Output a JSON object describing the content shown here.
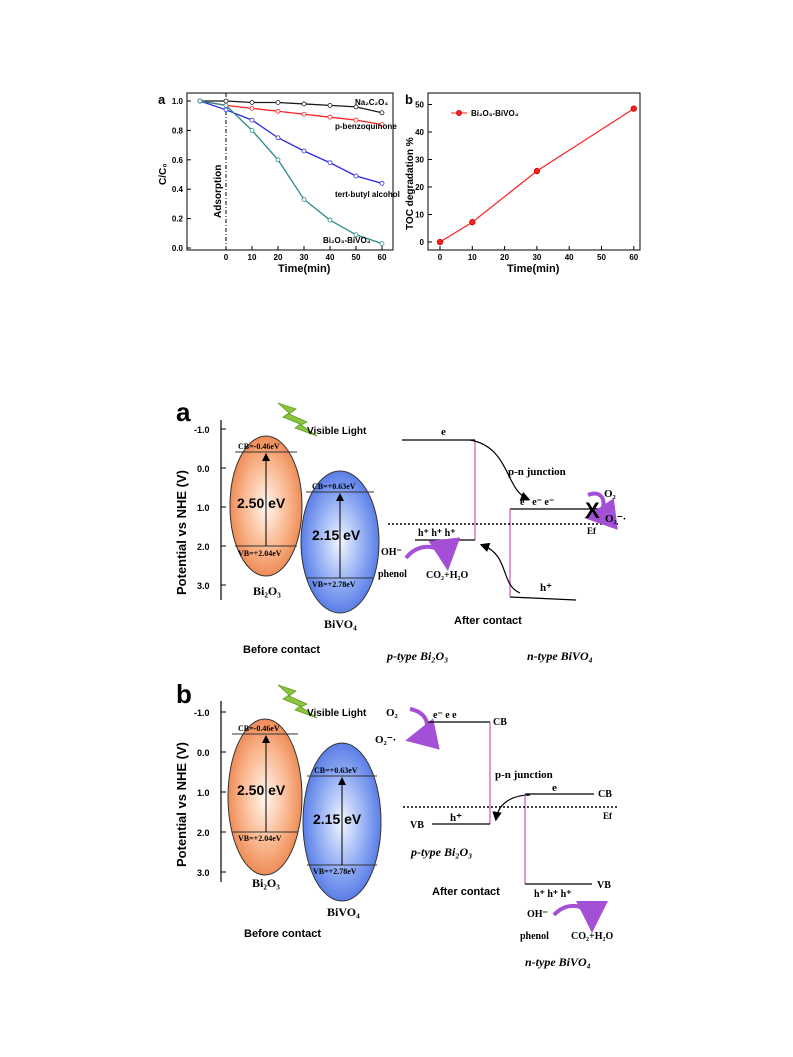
{
  "chart_data": [
    {
      "type": "line",
      "panel": "a",
      "xlabel": "Time(min)",
      "ylabel": "C/C₀",
      "annotation": "Adsorption",
      "x": [
        -10,
        0,
        10,
        20,
        30,
        40,
        50,
        60
      ],
      "xticks": [
        "0",
        "10",
        "20",
        "30",
        "40",
        "50",
        "60"
      ],
      "yticks": [
        "0.0",
        "0.2",
        "0.4",
        "0.6",
        "0.8",
        "1.0"
      ],
      "ylim": [
        0,
        1.05
      ],
      "series": [
        {
          "name": "Na₂C₂O₄",
          "color": "#1a1a1a",
          "values": [
            1.0,
            1.0,
            0.99,
            0.99,
            0.98,
            0.97,
            0.96,
            0.92
          ]
        },
        {
          "name": "p-benzoquinone",
          "color": "#ff2020",
          "values": [
            1.0,
            0.97,
            0.95,
            0.93,
            0.91,
            0.89,
            0.87,
            0.84
          ]
        },
        {
          "name": "tert-butyl alcohol",
          "color": "#2b2bdc",
          "values": [
            1.0,
            0.94,
            0.87,
            0.75,
            0.66,
            0.58,
            0.49,
            0.44
          ]
        },
        {
          "name": "Bi₂O₃-BiVO₄",
          "color": "#2a8a8a",
          "values": [
            1.0,
            0.97,
            0.8,
            0.6,
            0.33,
            0.19,
            0.09,
            0.03
          ]
        }
      ]
    },
    {
      "type": "line",
      "panel": "b",
      "xlabel": "Time(min)",
      "ylabel": "TOC degradation %",
      "x": [
        0,
        10,
        30,
        60
      ],
      "xticks": [
        "0",
        "10",
        "20",
        "30",
        "40",
        "50",
        "60"
      ],
      "yticks": [
        "0",
        "10",
        "20",
        "30",
        "40",
        "50"
      ],
      "ylim": [
        -2,
        52
      ],
      "series": [
        {
          "name": "Bi₂O₃-BiVO₄",
          "color": "#ff2020",
          "values": [
            0,
            7.2,
            25.8,
            48.5
          ]
        }
      ]
    }
  ],
  "diagram_a": {
    "panel": "a",
    "yaxis_label": "Potential vs NHE (V)",
    "yticks": [
      "-1.0",
      "0.0",
      "1.0",
      "2.0",
      "3.0"
    ],
    "visible_light": "Visible Light",
    "bi2o3": {
      "cb": "CB=-0.46eV",
      "gap": "2.50 eV",
      "vb": "VB=+2.04eV",
      "name": "Bi₂O₃"
    },
    "bivo4": {
      "cb": "CB=+0.63eV",
      "gap": "2.15 eV",
      "vb": "VB=+2.78eV",
      "name": "BiVO₄"
    },
    "before": "Before contact",
    "after": "After contact",
    "e": "e",
    "pn": "p-n junction",
    "electrons": "e⁻  e⁻  e⁻",
    "holes": "h⁺  h⁺  h⁺",
    "h_plus": "h⁺",
    "o2": "O₂",
    "o2_rad": "O₂⁻·",
    "ef": "Ef",
    "oh": "OH⁻",
    "phenol": "phenol",
    "products": "CO₂+H₂O",
    "p_type": "p-type Bi₂O₃",
    "n_type": "n-type BiVO₄"
  },
  "diagram_b": {
    "panel": "b",
    "yaxis_label": "Potential vs NHE (V)",
    "yticks": [
      "-1.0",
      "0.0",
      "1.0",
      "2.0",
      "3.0"
    ],
    "visible_light": "Visible Light",
    "bi2o3": {
      "cb": "CB=-0.46eV",
      "gap": "2.50 eV",
      "vb": "VB=+2.04eV",
      "name": "Bi₂O₃"
    },
    "bivo4": {
      "cb": "CB=+0.63eV",
      "gap": "2.15 eV",
      "vb": "VB=+2.78eV",
      "name": "BiVO₄"
    },
    "before": "Before contact",
    "after": "After contact",
    "o2": "O₂",
    "o2_rad": "O₂⁻·",
    "electrons": "e⁻  e  e",
    "cb": "CB",
    "pn": "p-n junction",
    "e": "e",
    "vb": "VB",
    "h_plus": "h⁺",
    "ef": "Ef",
    "holes": "h⁺  h⁺  h⁺",
    "oh": "OH⁻",
    "phenol": "phenol",
    "products": "CO₂+H₂O",
    "p_type": "p-type Bi₂O₃",
    "n_type": "n-type BiVO₄"
  }
}
